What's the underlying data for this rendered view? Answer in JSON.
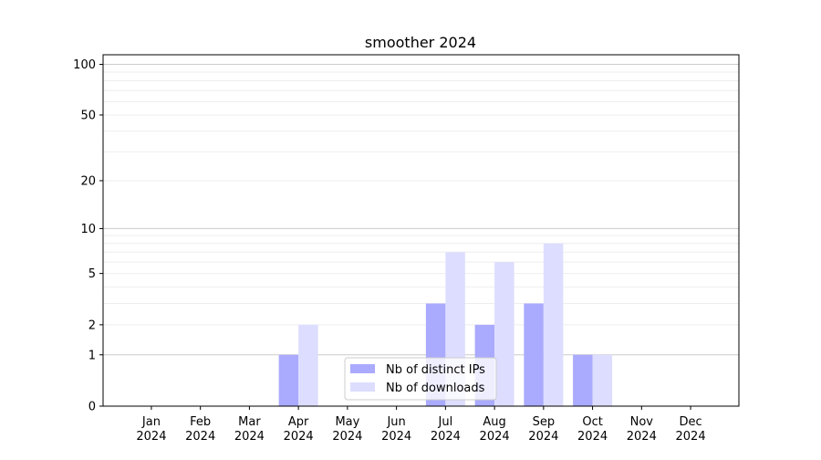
{
  "chart_data": {
    "type": "bar",
    "title": "smoother 2024",
    "xlabel": "",
    "ylabel": "",
    "y_scale": "log(1+y)",
    "ylim": [
      0,
      114
    ],
    "yticks": [
      0,
      1,
      2,
      5,
      10,
      20,
      50,
      100
    ],
    "ytick_labels": [
      "0",
      "1",
      "2",
      "5",
      "10",
      "20",
      "50",
      "100"
    ],
    "grid": true,
    "legend_placement": "lower center",
    "categories": [
      "Jan\n2024",
      "Feb\n2024",
      "Mar\n2024",
      "Apr\n2024",
      "May\n2024",
      "Jun\n2024",
      "Jul\n2024",
      "Aug\n2024",
      "Sep\n2024",
      "Oct\n2024",
      "Nov\n2024",
      "Dec\n2024"
    ],
    "series": [
      {
        "name": "Nb of distinct IPs",
        "color": "#aaaaff",
        "values": [
          0,
          0,
          0,
          1,
          0,
          0,
          3,
          2,
          3,
          1,
          0,
          0
        ]
      },
      {
        "name": "Nb of downloads",
        "color": "#ddddff",
        "values": [
          0,
          0,
          0,
          2,
          0,
          0,
          7,
          6,
          8,
          1,
          0,
          0
        ]
      }
    ]
  }
}
